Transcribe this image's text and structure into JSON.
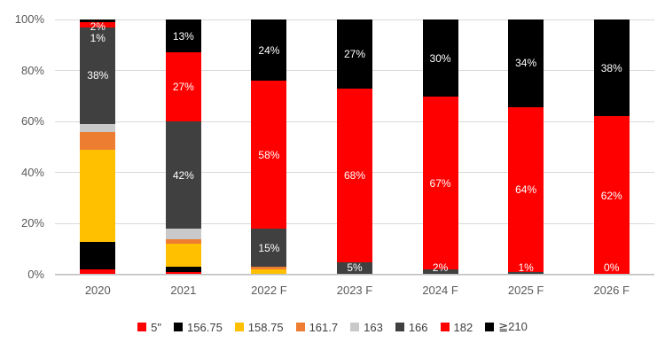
{
  "chart_data": {
    "type": "bar",
    "subtype": "stacked-100-percent-column",
    "title": "",
    "xlabel": "",
    "ylabel": "",
    "ylim": [
      0,
      100
    ],
    "grid": true,
    "legend_position": "bottom",
    "y_ticks": [
      "0%",
      "20%",
      "40%",
      "60%",
      "80%",
      "100%"
    ],
    "categories": [
      "2020",
      "2021",
      "2022 F",
      "2023 F",
      "2024 F",
      "2025 F",
      "2026 F"
    ],
    "series": [
      {
        "name": "5\"",
        "color": "#FF0000",
        "values": [
          2,
          1,
          0,
          0,
          0,
          0,
          0
        ]
      },
      {
        "name": "156.75",
        "color": "#000000",
        "values": [
          11,
          2,
          0,
          0,
          0,
          0,
          0
        ]
      },
      {
        "name": "158.75",
        "color": "#FFC000",
        "values": [
          36,
          9,
          2,
          0,
          0,
          0,
          0
        ]
      },
      {
        "name": "161.7",
        "color": "#ED7D31",
        "values": [
          7,
          2,
          1,
          0,
          0,
          0,
          0
        ]
      },
      {
        "name": "163",
        "color": "#C9C9C9",
        "values": [
          3,
          4,
          0,
          0,
          0,
          0,
          0
        ]
      },
      {
        "name": "166",
        "color": "#404040",
        "values": [
          38,
          42,
          15,
          5,
          2,
          1,
          0
        ]
      },
      {
        "name": "182",
        "color": "#FF0000",
        "values": [
          2,
          27,
          58,
          68,
          67,
          64,
          62
        ]
      },
      {
        "name": "≧210",
        "color": "#000000",
        "values": [
          1,
          13,
          24,
          27,
          30,
          34,
          38
        ]
      }
    ],
    "labeled_series": [
      "166",
      "182",
      "≧210"
    ],
    "data_label_color": "#FFFFFF",
    "gridline_color": "#D9D9D9",
    "axis_text_color": "#595959"
  }
}
